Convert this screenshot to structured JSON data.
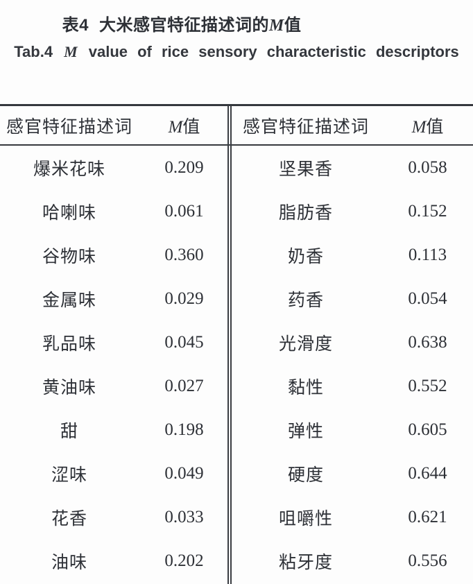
{
  "title": {
    "index": "表4",
    "text": "大米感官特征描述词的",
    "m": "M",
    "suffix": "值"
  },
  "subtitle": {
    "index": "Tab.4",
    "m": "M",
    "text": "value of rice sensory characteristic descriptors"
  },
  "table": {
    "header": {
      "descriptor_label": "感官特征描述词",
      "m": "M",
      "value_label": "值"
    },
    "rows": [
      {
        "left_term": "爆米花味",
        "left_value": "0.209",
        "right_term": "坚果香",
        "right_value": "0.058"
      },
      {
        "left_term": "哈喇味",
        "left_value": "0.061",
        "right_term": "脂肪香",
        "right_value": "0.152"
      },
      {
        "left_term": "谷物味",
        "left_value": "0.360",
        "right_term": "奶香",
        "right_value": "0.113"
      },
      {
        "left_term": "金属味",
        "left_value": "0.029",
        "right_term": "药香",
        "right_value": "0.054"
      },
      {
        "left_term": "乳品味",
        "left_value": "0.045",
        "right_term": "光滑度",
        "right_value": "0.638"
      },
      {
        "left_term": "黄油味",
        "left_value": "0.027",
        "right_term": "黏性",
        "right_value": "0.552"
      },
      {
        "left_term": "甜",
        "left_value": "0.198",
        "right_term": "弹性",
        "right_value": "0.605"
      },
      {
        "left_term": "涩味",
        "left_value": "0.049",
        "right_term": "硬度",
        "right_value": "0.644"
      },
      {
        "left_term": "花香",
        "left_value": "0.033",
        "right_term": "咀嚼性",
        "right_value": "0.621"
      },
      {
        "left_term": "油味",
        "left_value": "0.202",
        "right_term": "粘牙度",
        "right_value": "0.556"
      }
    ]
  },
  "colors": {
    "ink": "#2d3036",
    "rule": "#35383d",
    "background": "#fdfdfd"
  }
}
